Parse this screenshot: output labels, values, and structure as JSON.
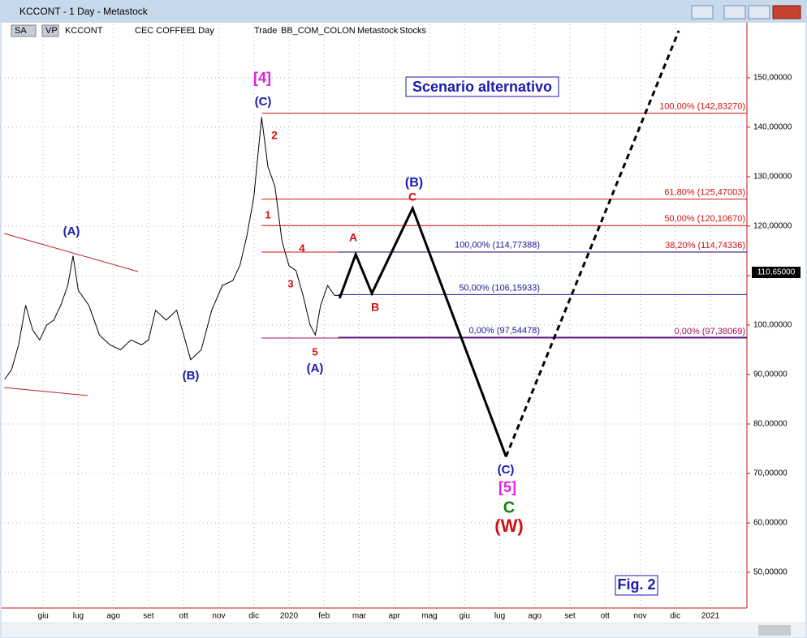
{
  "window": {
    "title": "KCCONT - 1 Day - Metastock"
  },
  "toolbar": {
    "items": [
      "SA",
      "VP",
      "KCCONT",
      "CEC COFFEE",
      "1 Day",
      "Trade",
      "BB_COM_COLON",
      "Metastock",
      "Stocks"
    ]
  },
  "chart_data": {
    "type": "line",
    "title": "Scenario alternativo",
    "note": "Fig. 2",
    "color": "#000000",
    "x": [
      -1.1,
      -0.9,
      -0.7,
      -0.5,
      -0.3,
      -0.1,
      0.1,
      0.3,
      0.5,
      0.7,
      0.85,
      1.0,
      1.3,
      1.6,
      1.9,
      2.2,
      2.5,
      2.8,
      3.0,
      3.2,
      3.5,
      3.8,
      4.0,
      4.2,
      4.5,
      4.8,
      5.1,
      5.4,
      5.6,
      5.8,
      6.0,
      6.22,
      6.4,
      6.6,
      6.8,
      7.0,
      7.2,
      7.4,
      7.6,
      7.75,
      7.9,
      8.1,
      8.3,
      8.5
    ],
    "values": [
      89,
      91,
      96,
      104,
      99,
      97,
      100,
      101,
      104,
      108,
      114,
      107,
      104,
      98,
      96,
      95,
      97,
      96,
      97,
      103,
      101,
      103,
      98,
      93,
      95,
      103,
      108,
      109,
      112,
      118,
      126,
      142,
      132,
      128,
      117,
      112,
      111,
      106,
      100,
      98,
      104,
      108,
      106,
      106
    ],
    "projection": {
      "x": [
        8.44,
        8.9,
        9.36,
        10.52,
        13.18
      ],
      "values": [
        105.4,
        114.3,
        106.4,
        123.6,
        73.4
      ]
    },
    "projection_dashed": {
      "x": [
        13.18,
        18.1
      ],
      "values": [
        73.4,
        159.5
      ]
    },
    "fib_levels": [
      {
        "value": 142.8327,
        "label": "100,00% (142,83270)",
        "color": "#d01010",
        "start": 6.22
      },
      {
        "value": 125.47003,
        "label": "61,80% (125,47003)",
        "color": "#d01010",
        "start": 6.22
      },
      {
        "value": 120.1067,
        "label": "50,00% (120,10670)",
        "color": "#d01010",
        "start": 6.22
      },
      {
        "value": 114.74336,
        "label": "38,20% (114,74336)",
        "color": "#d01010",
        "start": 6.22
      },
      {
        "value": 97.38069,
        "label": "0,00% (97,38069)",
        "color": "#a01060",
        "start": 6.22
      },
      {
        "value": 114.77388,
        "label": "100,00% (114,77388)",
        "color": "#1a1a90",
        "start": 8.4
      },
      {
        "value": 106.15933,
        "label": "50,00% (106,15933)",
        "color": "#1a1a90",
        "start": 8.4
      },
      {
        "value": 97.54478,
        "label": "0,00% (97,54478)",
        "color": "#1a1a90",
        "start": 8.4
      }
    ],
    "last_price": {
      "value": 110.65,
      "label": "110,65000"
    },
    "xlim": [
      -1.23,
      20.04
    ],
    "ylim": [
      42.8,
      160.8
    ],
    "xticks": [
      {
        "value": 0,
        "label": "giu"
      },
      {
        "value": 1,
        "label": "lug"
      },
      {
        "value": 2,
        "label": "ago"
      },
      {
        "value": 3,
        "label": "set"
      },
      {
        "value": 4,
        "label": "ott"
      },
      {
        "value": 5,
        "label": "nov"
      },
      {
        "value": 6,
        "label": "dic"
      },
      {
        "value": 7,
        "label": "2020"
      },
      {
        "value": 8,
        "label": "feb"
      },
      {
        "value": 9,
        "label": "mar"
      },
      {
        "value": 10,
        "label": "apr"
      },
      {
        "value": 11,
        "label": "mag"
      },
      {
        "value": 12,
        "label": "giu"
      },
      {
        "value": 13,
        "label": "lug"
      },
      {
        "value": 14,
        "label": "ago"
      },
      {
        "value": 15,
        "label": "set"
      },
      {
        "value": 16,
        "label": "ott"
      },
      {
        "value": 17,
        "label": "nov"
      },
      {
        "value": 18,
        "label": "dic"
      },
      {
        "value": 19,
        "label": "2021"
      }
    ],
    "yticks": [
      {
        "value": 50,
        "label": "50,00000"
      },
      {
        "value": 60,
        "label": "60,00000"
      },
      {
        "value": 70,
        "label": "70,00000"
      },
      {
        "value": 80,
        "label": "80,00000"
      },
      {
        "value": 90,
        "label": "90,00000"
      },
      {
        "value": 100,
        "label": "100,00000"
      },
      {
        "value": 110,
        "label": "110,00000"
      },
      {
        "value": 120,
        "label": "120,00000"
      },
      {
        "value": 130,
        "label": "130,00000"
      },
      {
        "value": 140,
        "label": "140,00000"
      },
      {
        "value": 150,
        "label": "150,00000"
      }
    ],
    "wave_labels": [
      {
        "text": "[4]",
        "color": "#e020e0"
      },
      {
        "text": "(C)",
        "color": "#1a1ab0"
      },
      {
        "text": "2",
        "color": "#d01010"
      },
      {
        "text": "1",
        "color": "#d01010"
      },
      {
        "text": "4",
        "color": "#d01010"
      },
      {
        "text": "3",
        "color": "#d01010"
      },
      {
        "text": "5",
        "color": "#d01010"
      },
      {
        "text": "(A)",
        "color": "#1a1ab0"
      },
      {
        "text": "(A)",
        "color": "#1a1ab0"
      },
      {
        "text": "(B)",
        "color": "#1a1ab0"
      },
      {
        "text": "A",
        "color": "#d01010"
      },
      {
        "text": "B",
        "color": "#d01010"
      },
      {
        "text": "(B)",
        "color": "#1a1ab0"
      },
      {
        "text": "C",
        "color": "#d01010"
      },
      {
        "text": "(C)",
        "color": "#1a1ab0"
      },
      {
        "text": "[5]",
        "color": "#e020e0"
      },
      {
        "text": "C",
        "color": "#108010"
      },
      {
        "text": "(W)",
        "color": "#d01010"
      }
    ]
  }
}
